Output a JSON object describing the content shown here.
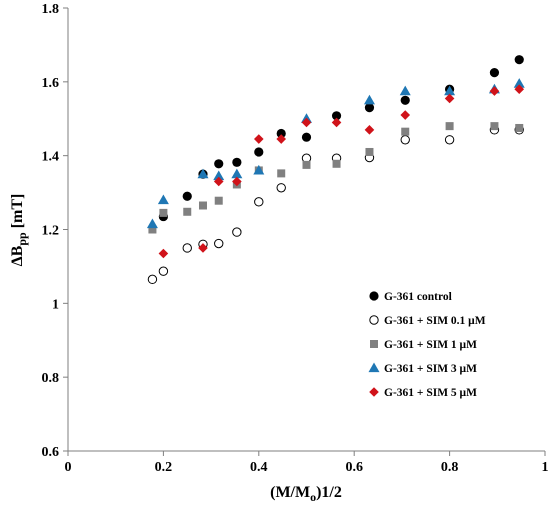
{
  "chart_data": {
    "type": "scatter",
    "xlabel": "(M/M",
    "xlabel_sub": "o",
    "xlabel_sup": ")1/2",
    "ylabel": "ΔB",
    "ylabel_sub": "pp",
    "ylabel_rest": " [mT]",
    "xlim": [
      0,
      1
    ],
    "ylim": [
      0.6,
      1.8
    ],
    "xticks": [
      0,
      0.2,
      0.4,
      0.6,
      0.8,
      1
    ],
    "xtick_labels": [
      "0",
      "0.2",
      "0.4",
      "0.6",
      "0.8",
      "1"
    ],
    "yticks": [
      0.6,
      0.8,
      1.0,
      1.2,
      1.4,
      1.6,
      1.8
    ],
    "ytick_labels": [
      "0.6",
      "0.8",
      "1",
      "1.2",
      "1.4",
      "1.6",
      "1.8"
    ],
    "grid": false,
    "legend_position": "lower-right",
    "series": [
      {
        "name": "G-361 control",
        "marker": "filled-circle",
        "color": "#000000",
        "x": [
          0.2,
          0.25,
          0.283,
          0.316,
          0.354,
          0.4,
          0.447,
          0.5,
          0.563,
          0.632,
          0.707,
          0.8,
          0.894,
          0.946
        ],
        "y": [
          1.235,
          1.29,
          1.35,
          1.378,
          1.382,
          1.41,
          1.46,
          1.45,
          1.508,
          1.53,
          1.55,
          1.58,
          1.625,
          1.66
        ]
      },
      {
        "name": "G-361 + SIM 0.1 μM",
        "marker": "open-circle",
        "color": "#000000",
        "x": [
          0.177,
          0.2,
          0.25,
          0.283,
          0.316,
          0.354,
          0.4,
          0.447,
          0.5,
          0.563,
          0.632,
          0.707,
          0.8,
          0.894,
          0.946
        ],
        "y": [
          1.065,
          1.087,
          1.15,
          1.16,
          1.162,
          1.193,
          1.275,
          1.313,
          1.393,
          1.393,
          1.395,
          1.443,
          1.443,
          1.47,
          1.47
        ]
      },
      {
        "name": "G-361 + SIM 1 μM",
        "marker": "square",
        "color": "#808080",
        "x": [
          0.177,
          0.2,
          0.25,
          0.283,
          0.316,
          0.354,
          0.4,
          0.447,
          0.5,
          0.563,
          0.632,
          0.707,
          0.8,
          0.894,
          0.946
        ],
        "y": [
          1.2,
          1.245,
          1.248,
          1.265,
          1.278,
          1.322,
          1.36,
          1.352,
          1.375,
          1.378,
          1.41,
          1.465,
          1.48,
          1.48,
          1.475
        ]
      },
      {
        "name": "G-361 + SIM 3 μM",
        "marker": "triangle",
        "color": "#1f77b4",
        "x": [
          0.177,
          0.2,
          0.283,
          0.316,
          0.354,
          0.4,
          0.5,
          0.632,
          0.707,
          0.8,
          0.894,
          0.946
        ],
        "y": [
          1.215,
          1.28,
          1.35,
          1.345,
          1.35,
          1.36,
          1.5,
          1.55,
          1.575,
          1.575,
          1.58,
          1.595
        ]
      },
      {
        "name": "G-361 + SIM 5 μM",
        "marker": "diamond",
        "color": "#d0131a",
        "x": [
          0.2,
          0.283,
          0.316,
          0.354,
          0.4,
          0.447,
          0.5,
          0.563,
          0.632,
          0.707,
          0.8,
          0.894,
          0.946
        ],
        "y": [
          1.135,
          1.15,
          1.33,
          1.33,
          1.445,
          1.445,
          1.49,
          1.49,
          1.47,
          1.51,
          1.555,
          1.575,
          1.58
        ]
      }
    ]
  }
}
